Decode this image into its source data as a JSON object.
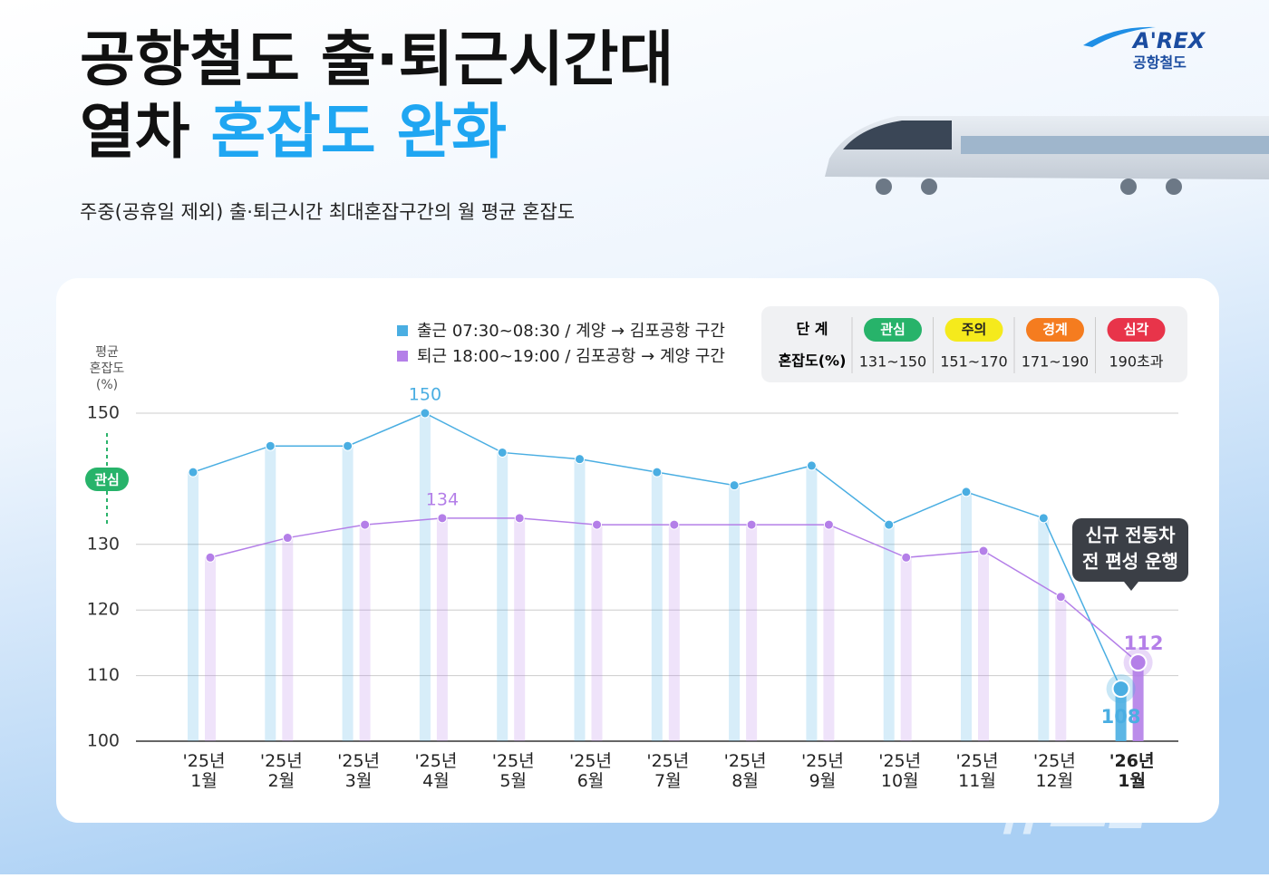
{
  "header": {
    "title_line1": "공항철도 출·퇴근시간대",
    "title_line2": "열차",
    "title_highlight": "혼잡도 완화",
    "subtitle": "주중(공휴일 제외) 출·퇴근시간 최대혼잡구간의 월 평균 혼잡도",
    "logo": "A'REX",
    "logo_sub": "공항철도"
  },
  "stages": {
    "header_stage": "단 계",
    "header_range": "혼잡도(%)",
    "items": [
      {
        "name": "관심",
        "range": "131~150",
        "color": "#27b36a"
      },
      {
        "name": "주의",
        "range": "151~170",
        "color": "#f5ea1c"
      },
      {
        "name": "경계",
        "range": "171~190",
        "color": "#f57c1f"
      },
      {
        "name": "심각",
        "range": "190초과",
        "color": "#e8344a"
      }
    ]
  },
  "chart_data": {
    "type": "line",
    "y_label": [
      "평균",
      "혼잡도",
      "(%)"
    ],
    "categories": [
      "'25년 1월",
      "'25년 2월",
      "'25년 3월",
      "'25년 4월",
      "'25년 5월",
      "'25년 6월",
      "'25년 7월",
      "'25년 8월",
      "'25년 9월",
      "'25년 10월",
      "'25년 11월",
      "'25년 12월",
      "'26년 1월"
    ],
    "series": [
      {
        "name": "출근 07:30~08:30 / 계양 → 김포공항 구간",
        "color": "#4aaee2",
        "values": [
          141,
          145,
          145,
          150,
          144,
          143,
          141,
          139,
          142,
          133,
          138,
          134,
          108
        ]
      },
      {
        "name": "퇴근 18:00~19:00 / 김포공항 → 계양 구간",
        "color": "#b47fe8",
        "values": [
          128,
          131,
          133,
          134,
          134,
          133,
          133,
          133,
          133,
          128,
          129,
          122,
          112
        ]
      }
    ],
    "ylim": [
      100,
      150
    ],
    "yticks": [
      100,
      110,
      120,
      130,
      150
    ],
    "grid": true,
    "band_label": "관심",
    "annotation": [
      "신규 전동차",
      "전 편성 운행"
    ]
  },
  "watermark": "뉴스1"
}
